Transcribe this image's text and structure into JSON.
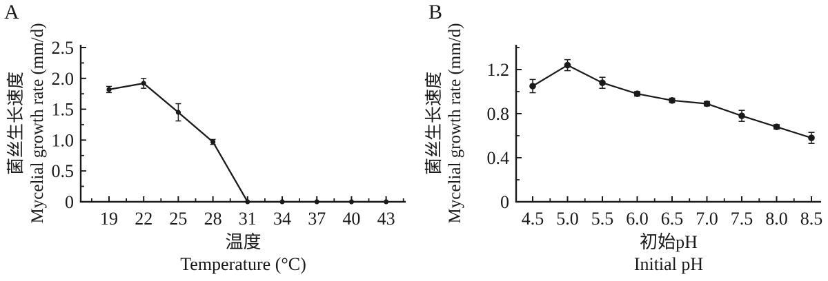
{
  "figure": {
    "background": "#ffffff",
    "ink_color": "#1a1a1a"
  },
  "chart_data": [
    {
      "type": "line",
      "panel_label": "A",
      "title": "",
      "x": [
        19,
        22,
        25,
        28,
        31,
        34,
        37,
        40,
        43
      ],
      "x_tick_labels": [
        "19",
        "22",
        "25",
        "28",
        "31",
        "34",
        "37",
        "40",
        "43"
      ],
      "series": [
        {
          "name": "mycelial-growth-rate-vs-temperature",
          "values": [
            1.82,
            1.92,
            1.45,
            0.97,
            0,
            0,
            0,
            0,
            0
          ],
          "errors": [
            0.05,
            0.08,
            0.14,
            0.04,
            0,
            0,
            0,
            0,
            0
          ]
        }
      ],
      "xlabel_zh": "温度",
      "xlabel_en": "Temperature (°C)",
      "ylabel_zh": "菌丝生长速度",
      "ylabel_en": "Mycelial growth rate (mm/d)",
      "ylim": [
        0,
        2.5
      ],
      "y_major_ticks": [
        0,
        0.5,
        1.0,
        1.5,
        2.0,
        2.5
      ],
      "y_tick_labels": [
        "0",
        "0.5",
        "1.0",
        "1.5",
        "2.0",
        "2.5"
      ],
      "y_minor_step": 0.25,
      "grid": false,
      "legend": "none",
      "marker": "filled-circle",
      "line_color": "#1a1a1a"
    },
    {
      "type": "line",
      "panel_label": "B",
      "title": "",
      "x": [
        4.5,
        5.0,
        5.5,
        6.0,
        6.5,
        7.0,
        7.5,
        8.0,
        8.5
      ],
      "x_tick_labels": [
        "4.5",
        "5.0",
        "5.5",
        "6.0",
        "6.5",
        "7.0",
        "7.5",
        "8.0",
        "8.5"
      ],
      "series": [
        {
          "name": "mycelial-growth-rate-vs-initial-ph",
          "values": [
            1.05,
            1.24,
            1.08,
            0.98,
            0.92,
            0.89,
            0.78,
            0.68,
            0.58
          ],
          "errors": [
            0.06,
            0.05,
            0.05,
            0.02,
            0.02,
            0.02,
            0.05,
            0.02,
            0.05
          ]
        }
      ],
      "xlabel_zh": "初始pH",
      "xlabel_en": "Initial pH",
      "ylabel_zh": "菌丝生长速度",
      "ylabel_en": "Mycelial growth rate (mm/d)",
      "ylim": [
        0,
        1.4
      ],
      "y_major_ticks": [
        0,
        0.4,
        0.8,
        1.2
      ],
      "y_tick_labels": [
        "0",
        "0.4",
        "0.8",
        "1.2"
      ],
      "y_minor_step": 0.2,
      "grid": false,
      "legend": "none",
      "marker": "filled-circle",
      "line_color": "#1a1a1a"
    }
  ]
}
